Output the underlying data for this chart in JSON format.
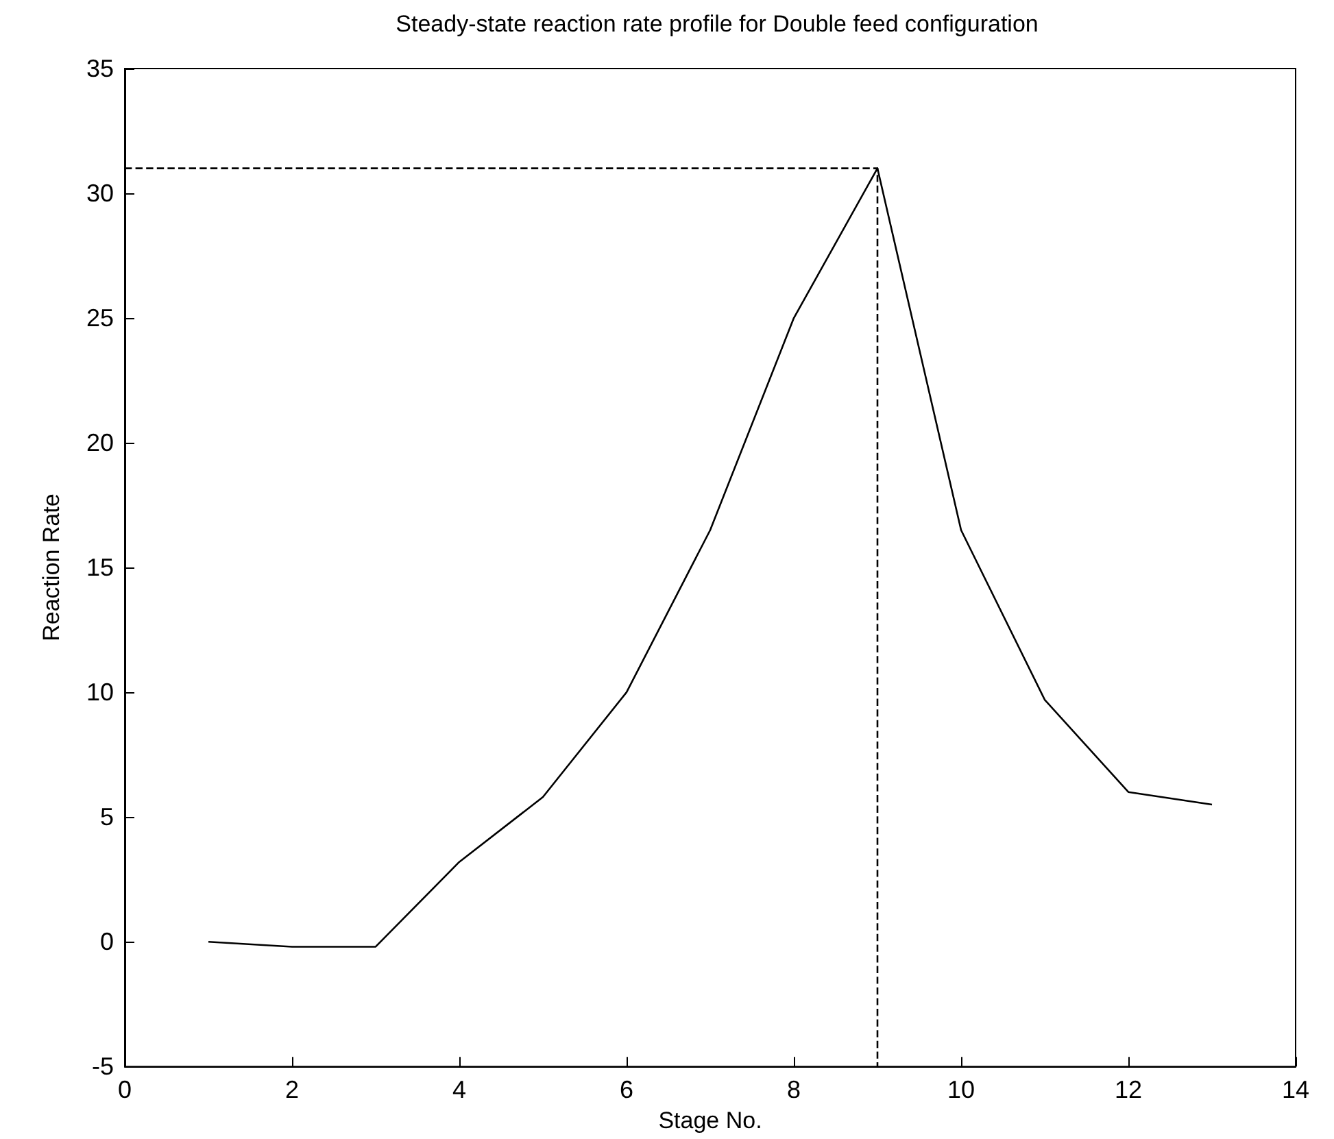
{
  "chart_data": {
    "type": "line",
    "title": "Steady-state reaction rate profile for Double feed configuration",
    "xlabel": "Stage No.",
    "ylabel": "Reaction Rate",
    "series": [
      {
        "color": "#000000",
        "x": [
          1,
          2,
          3,
          4,
          5,
          6,
          7,
          8,
          9,
          10,
          11,
          12,
          13
        ],
        "values": [
          0,
          -0.2,
          -0.2,
          3.2,
          5.8,
          10,
          16.5,
          25,
          31,
          16.5,
          9.7,
          6,
          5.5
        ],
        "line_style": "solid"
      },
      {
        "color": "#000000",
        "x": [
          0,
          9,
          9
        ],
        "values": [
          31,
          31,
          -5
        ],
        "line_style": "dashed"
      }
    ],
    "xlim": [
      0,
      14
    ],
    "xticks": [
      0,
      2,
      4,
      6,
      8,
      10,
      12,
      14
    ],
    "ylim": [
      -5,
      35
    ],
    "yticks": [
      -5,
      0,
      5,
      10,
      15,
      20,
      25,
      30,
      35
    ],
    "grid": false,
    "marker": "none"
  }
}
